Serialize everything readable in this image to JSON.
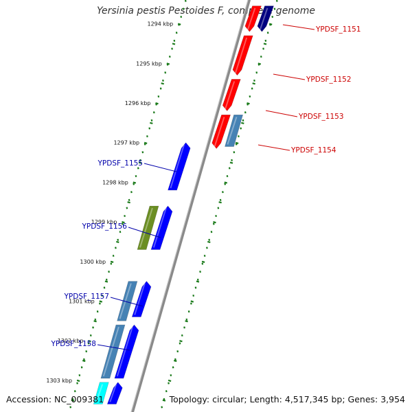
{
  "title": "Yersinia pestis Pestoides F, complete genome",
  "accession": "Accession: NC_009381",
  "stats": "Topology: circular; Length: 4,517,345 bp; Genes: 3,954",
  "colors": {
    "label_forward": "#0000aa",
    "label_reverse": "#cc0000",
    "tick": "#1a7a1a",
    "backbone": "#8a8a8a",
    "red_gene": "#ff0000",
    "navy_gene": "#000080",
    "blue_gene": "#0000ff",
    "steel_gene": "#4682b4",
    "olive_gene": "#6b8e23",
    "cyan_gene": "#00ffff"
  },
  "ticks": [
    {
      "kbp": 1294,
      "label": "1294 kbp"
    },
    {
      "kbp": 1295,
      "label": "1295 kbp"
    },
    {
      "kbp": 1296,
      "label": "1296 kbp"
    },
    {
      "kbp": 1297,
      "label": "1297 kbp"
    },
    {
      "kbp": 1298,
      "label": "1298 kbp"
    },
    {
      "kbp": 1299,
      "label": "1299 kbp"
    },
    {
      "kbp": 1300,
      "label": "1300 kbp"
    },
    {
      "kbp": 1301,
      "label": "1301 kbp"
    },
    {
      "kbp": 1302,
      "label": "1302 kbp"
    },
    {
      "kbp": 1303,
      "label": "1303 kbp"
    }
  ],
  "gene_labels": [
    {
      "text": "YPDSF_1151",
      "strand": "reverse"
    },
    {
      "text": "YPDSF_1152",
      "strand": "reverse"
    },
    {
      "text": "YPDSF_1153",
      "strand": "reverse"
    },
    {
      "text": "YPDSF_1154",
      "strand": "reverse"
    },
    {
      "text": "YPDSF_1155",
      "strand": "forward"
    },
    {
      "text": "YPDSF_1156",
      "strand": "forward"
    },
    {
      "text": "YPDSF_1157",
      "strand": "forward"
    },
    {
      "text": "YPDSF_1158",
      "strand": "forward"
    }
  ],
  "features": [
    {
      "name": "red-gene",
      "color": "red_gene",
      "track": "outer",
      "start_kbp": 1293.55,
      "end_kbp": 1294.2,
      "direction": "reverse"
    },
    {
      "name": "navy-gene",
      "color": "navy_gene",
      "track": "outer2",
      "start_kbp": 1293.55,
      "end_kbp": 1294.2,
      "direction": "reverse"
    },
    {
      "name": "red-gene",
      "color": "red_gene",
      "track": "outer",
      "start_kbp": 1294.3,
      "end_kbp": 1295.3,
      "direction": "reverse"
    },
    {
      "name": "red-gene",
      "color": "red_gene",
      "track": "outer",
      "start_kbp": 1295.4,
      "end_kbp": 1296.2,
      "direction": "reverse"
    },
    {
      "name": "red-gene",
      "color": "red_gene",
      "track": "outer",
      "start_kbp": 1296.3,
      "end_kbp": 1297.15,
      "direction": "reverse"
    },
    {
      "name": "steel-gene",
      "color": "steel_gene",
      "track": "outer2",
      "start_kbp": 1296.3,
      "end_kbp": 1297.1,
      "direction": "none"
    },
    {
      "name": "blue-gene",
      "color": "blue_gene",
      "track": "inner",
      "start_kbp": 1297.0,
      "end_kbp": 1298.2,
      "direction": "forward"
    },
    {
      "name": "blue-gene",
      "color": "blue_gene",
      "track": "inner",
      "start_kbp": 1298.6,
      "end_kbp": 1299.7,
      "direction": "forward"
    },
    {
      "name": "olive-gene",
      "color": "olive_gene",
      "track": "inner2",
      "start_kbp": 1298.6,
      "end_kbp": 1299.7,
      "direction": "none"
    },
    {
      "name": "blue-gene",
      "color": "blue_gene",
      "track": "inner",
      "start_kbp": 1300.5,
      "end_kbp": 1301.4,
      "direction": "forward"
    },
    {
      "name": "steel-gene",
      "color": "steel_gene",
      "track": "inner2",
      "start_kbp": 1300.5,
      "end_kbp": 1301.5,
      "direction": "none"
    },
    {
      "name": "blue-gene",
      "color": "blue_gene",
      "track": "inner",
      "start_kbp": 1301.6,
      "end_kbp": 1302.95,
      "direction": "forward"
    },
    {
      "name": "steel-gene",
      "color": "steel_gene",
      "track": "inner2",
      "start_kbp": 1301.6,
      "end_kbp": 1302.95,
      "direction": "none"
    },
    {
      "name": "blue-gene",
      "color": "blue_gene",
      "track": "inner",
      "start_kbp": 1303.05,
      "end_kbp": 1303.6,
      "direction": "forward"
    },
    {
      "name": "cyan-gene",
      "color": "cyan_gene",
      "track": "inner2",
      "start_kbp": 1303.05,
      "end_kbp": 1303.6,
      "direction": "none"
    }
  ]
}
